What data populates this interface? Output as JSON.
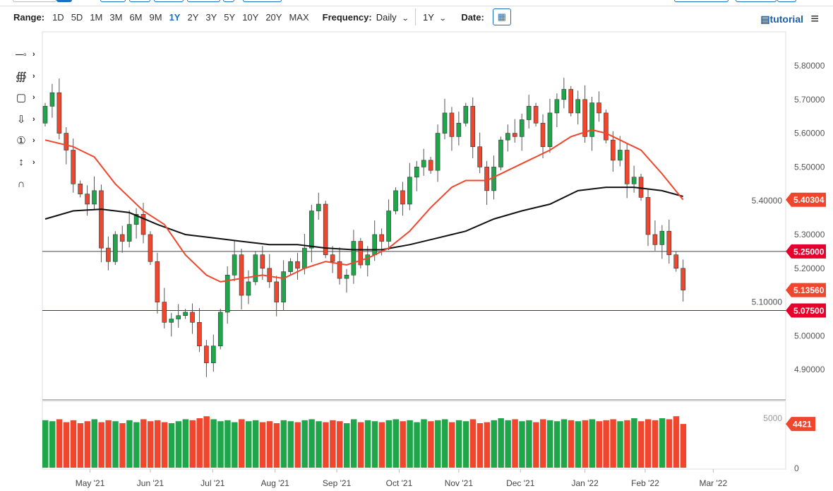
{
  "toolbar": {
    "range_label": "Range:",
    "ranges": [
      "1D",
      "5D",
      "1M",
      "3M",
      "6M",
      "9M",
      "1Y",
      "2Y",
      "3Y",
      "5Y",
      "10Y",
      "20Y",
      "MAX"
    ],
    "active_range": "1Y",
    "frequency_label": "Frequency:",
    "frequency_value": "Daily",
    "period_value": "1Y",
    "date_label": "Date:",
    "tutorial_label": "tutorial"
  },
  "colors": {
    "up": "#1fa64a",
    "down": "#f0462d",
    "ma_fast": "#f0462d",
    "ma_slow": "#111111",
    "level": "#e8002d",
    "accent": "#1a6fc1"
  },
  "chart_data": {
    "type": "candlestick",
    "title": "",
    "x_tick_labels": [
      "May '21",
      "Jun '21",
      "Jul '21",
      "Aug '21",
      "Sep '21",
      "Oct '21",
      "Nov '21",
      "Dec '21",
      "Jan '22",
      "Feb '22",
      "Mar '22"
    ],
    "x_tick_index": [
      6.4,
      15,
      23.9,
      32.8,
      41.6,
      50.5,
      59,
      67.8,
      77,
      85.6,
      95.3
    ],
    "y_ticks": [
      4.9,
      5.0,
      5.1,
      5.2,
      5.3,
      5.4,
      5.5,
      5.6,
      5.7,
      5.8
    ],
    "y_tick_labels": [
      "4.90000",
      "5.00000",
      "5.10000",
      "5.20000",
      "5.30000",
      "5.40000",
      "5.50000",
      "5.60000",
      "5.70000",
      "5.80000"
    ],
    "ylim": [
      4.87,
      5.9
    ],
    "first_open": 5.63,
    "closes": [
      5.68,
      5.72,
      5.6,
      5.55,
      5.45,
      5.42,
      5.39,
      5.43,
      5.26,
      5.22,
      5.3,
      5.28,
      5.33,
      5.36,
      5.3,
      5.22,
      5.1,
      5.04,
      5.05,
      5.06,
      5.07,
      5.04,
      4.97,
      4.92,
      4.97,
      5.07,
      5.18,
      5.24,
      5.12,
      5.16,
      5.24,
      5.2,
      5.16,
      5.1,
      5.19,
      5.22,
      5.2,
      5.26,
      5.37,
      5.39,
      5.24,
      5.22,
      5.17,
      5.18,
      5.28,
      5.21,
      5.24,
      5.3,
      5.28,
      5.37,
      5.43,
      5.39,
      5.47,
      5.5,
      5.52,
      5.49,
      5.6,
      5.66,
      5.59,
      5.63,
      5.68,
      5.56,
      5.5,
      5.43,
      5.5,
      5.58,
      5.6,
      5.59,
      5.64,
      5.68,
      5.63,
      5.56,
      5.66,
      5.7,
      5.73,
      5.66,
      5.7,
      5.59,
      5.69,
      5.66,
      5.58,
      5.52,
      5.55,
      5.45,
      5.47,
      5.41,
      5.3,
      5.27,
      5.31,
      5.24,
      5.2,
      5.1356
    ],
    "ma_fast": [
      [
        0,
        5.58
      ],
      [
        4,
        5.56
      ],
      [
        7,
        5.53
      ],
      [
        10,
        5.45
      ],
      [
        14,
        5.37
      ],
      [
        17,
        5.33
      ],
      [
        20,
        5.24
      ],
      [
        23,
        5.18
      ],
      [
        25,
        5.16
      ],
      [
        28,
        5.17
      ],
      [
        31,
        5.18
      ],
      [
        34,
        5.17
      ],
      [
        37,
        5.2
      ],
      [
        40,
        5.22
      ],
      [
        43,
        5.21
      ],
      [
        46,
        5.23
      ],
      [
        49,
        5.26
      ],
      [
        52,
        5.31
      ],
      [
        55,
        5.38
      ],
      [
        58,
        5.44
      ],
      [
        60,
        5.46
      ],
      [
        63,
        5.46
      ],
      [
        66,
        5.49
      ],
      [
        69,
        5.52
      ],
      [
        72,
        5.55
      ],
      [
        75,
        5.59
      ],
      [
        78,
        5.61
      ],
      [
        80,
        5.6
      ],
      [
        82,
        5.58
      ],
      [
        85,
        5.55
      ],
      [
        88,
        5.48
      ],
      [
        91,
        5.403
      ]
    ],
    "ma_slow": [
      [
        0,
        5.346
      ],
      [
        4,
        5.37
      ],
      [
        8,
        5.375
      ],
      [
        12,
        5.365
      ],
      [
        16,
        5.33
      ],
      [
        20,
        5.3
      ],
      [
        24,
        5.29
      ],
      [
        28,
        5.28
      ],
      [
        32,
        5.27
      ],
      [
        36,
        5.27
      ],
      [
        40,
        5.26
      ],
      [
        44,
        5.255
      ],
      [
        48,
        5.255
      ],
      [
        52,
        5.27
      ],
      [
        56,
        5.29
      ],
      [
        60,
        5.31
      ],
      [
        64,
        5.346
      ],
      [
        68,
        5.37
      ],
      [
        72,
        5.39
      ],
      [
        76,
        5.43
      ],
      [
        80,
        5.44
      ],
      [
        84,
        5.44
      ],
      [
        88,
        5.43
      ],
      [
        91,
        5.413
      ]
    ],
    "levels": [
      {
        "value": 5.25,
        "label": "5.25000",
        "color": "#444444"
      },
      {
        "value": 5.075,
        "label": "5.07500",
        "color": "#8b1a1a"
      }
    ],
    "price_tags": [
      {
        "value": 5.40304,
        "label": "5.40304",
        "color": "#f0462d"
      },
      {
        "value": 5.25,
        "label": "5.25000",
        "color": "#e8002d"
      },
      {
        "value": 5.1356,
        "label": "5.13560",
        "color": "#f0462d"
      },
      {
        "value": 5.075,
        "label": "5.07500",
        "color": "#e8002d"
      }
    ],
    "volume": [
      4800,
      4700,
      4900,
      4600,
      4800,
      4500,
      4700,
      4900,
      4600,
      4800,
      4700,
      4500,
      4800,
      4600,
      4900,
      4700,
      4800,
      4600,
      4500,
      4700,
      4900,
      4800,
      5000,
      5200,
      4900,
      4700,
      4800,
      4600,
      4900,
      4700,
      4800,
      4600,
      4700,
      4500,
      4800,
      4700,
      4600,
      4800,
      4900,
      4700,
      4600,
      4800,
      4700,
      4500,
      4900,
      4600,
      4800,
      4700,
      4600,
      4800,
      4900,
      4700,
      4800,
      4600,
      4900,
      4700,
      4800,
      4900,
      4600,
      4800,
      4700,
      4900,
      4500,
      4600,
      4800,
      5000,
      4800,
      4900,
      4700,
      4800,
      4600,
      4900,
      4800,
      4700,
      4900,
      4800,
      4700,
      4800,
      4900,
      4700,
      4800,
      4900,
      4700,
      4800,
      5000,
      4700,
      4900,
      4800,
      5000,
      4900,
      5200,
      4421
    ],
    "volume_ylim": [
      0,
      5000
    ],
    "volume_tick_labels": [
      "0",
      "5000"
    ],
    "volume_tag": "4421"
  }
}
